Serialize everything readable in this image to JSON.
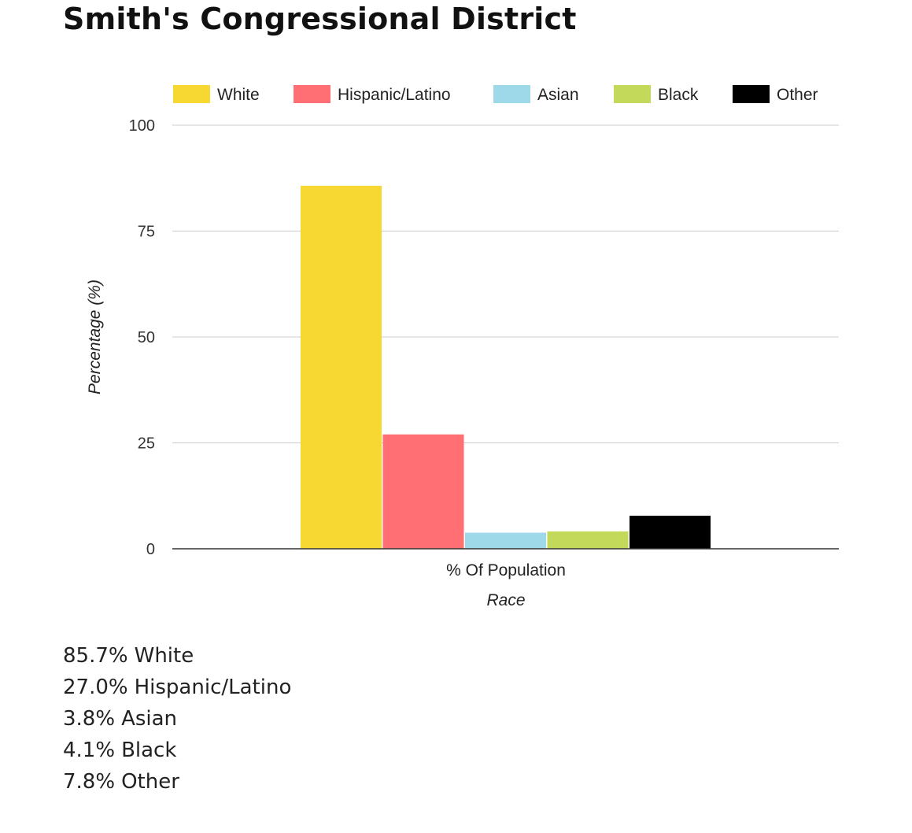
{
  "page": {
    "title": "Smith's Congressional District"
  },
  "chart_data": {
    "type": "bar",
    "categories": [
      "% Of Population"
    ],
    "series": [
      {
        "name": "White",
        "values": [
          85.7
        ],
        "color": "#f7d731"
      },
      {
        "name": "Hispanic/Latino",
        "values": [
          27.0
        ],
        "color": "#ff6f73"
      },
      {
        "name": "Asian",
        "values": [
          3.8
        ],
        "color": "#9ed9ea"
      },
      {
        "name": "Black",
        "values": [
          4.1
        ],
        "color": "#c3d95a"
      },
      {
        "name": "Other",
        "values": [
          7.8
        ],
        "color": "#000000"
      }
    ],
    "xlabel": "Race",
    "ylabel": "Percentage (%)",
    "ylim": [
      0,
      100
    ],
    "yticks": [
      "0",
      "25",
      "50",
      "75",
      "100"
    ],
    "grid": true,
    "legend": "top"
  },
  "summary": [
    {
      "value": "85.7%",
      "label": "White"
    },
    {
      "value": "27.0%",
      "label": "Hispanic/Latino"
    },
    {
      "value": "3.8%",
      "label": "Asian"
    },
    {
      "value": "4.1%",
      "label": "Black"
    },
    {
      "value": "7.8%",
      "label": "Other"
    }
  ]
}
